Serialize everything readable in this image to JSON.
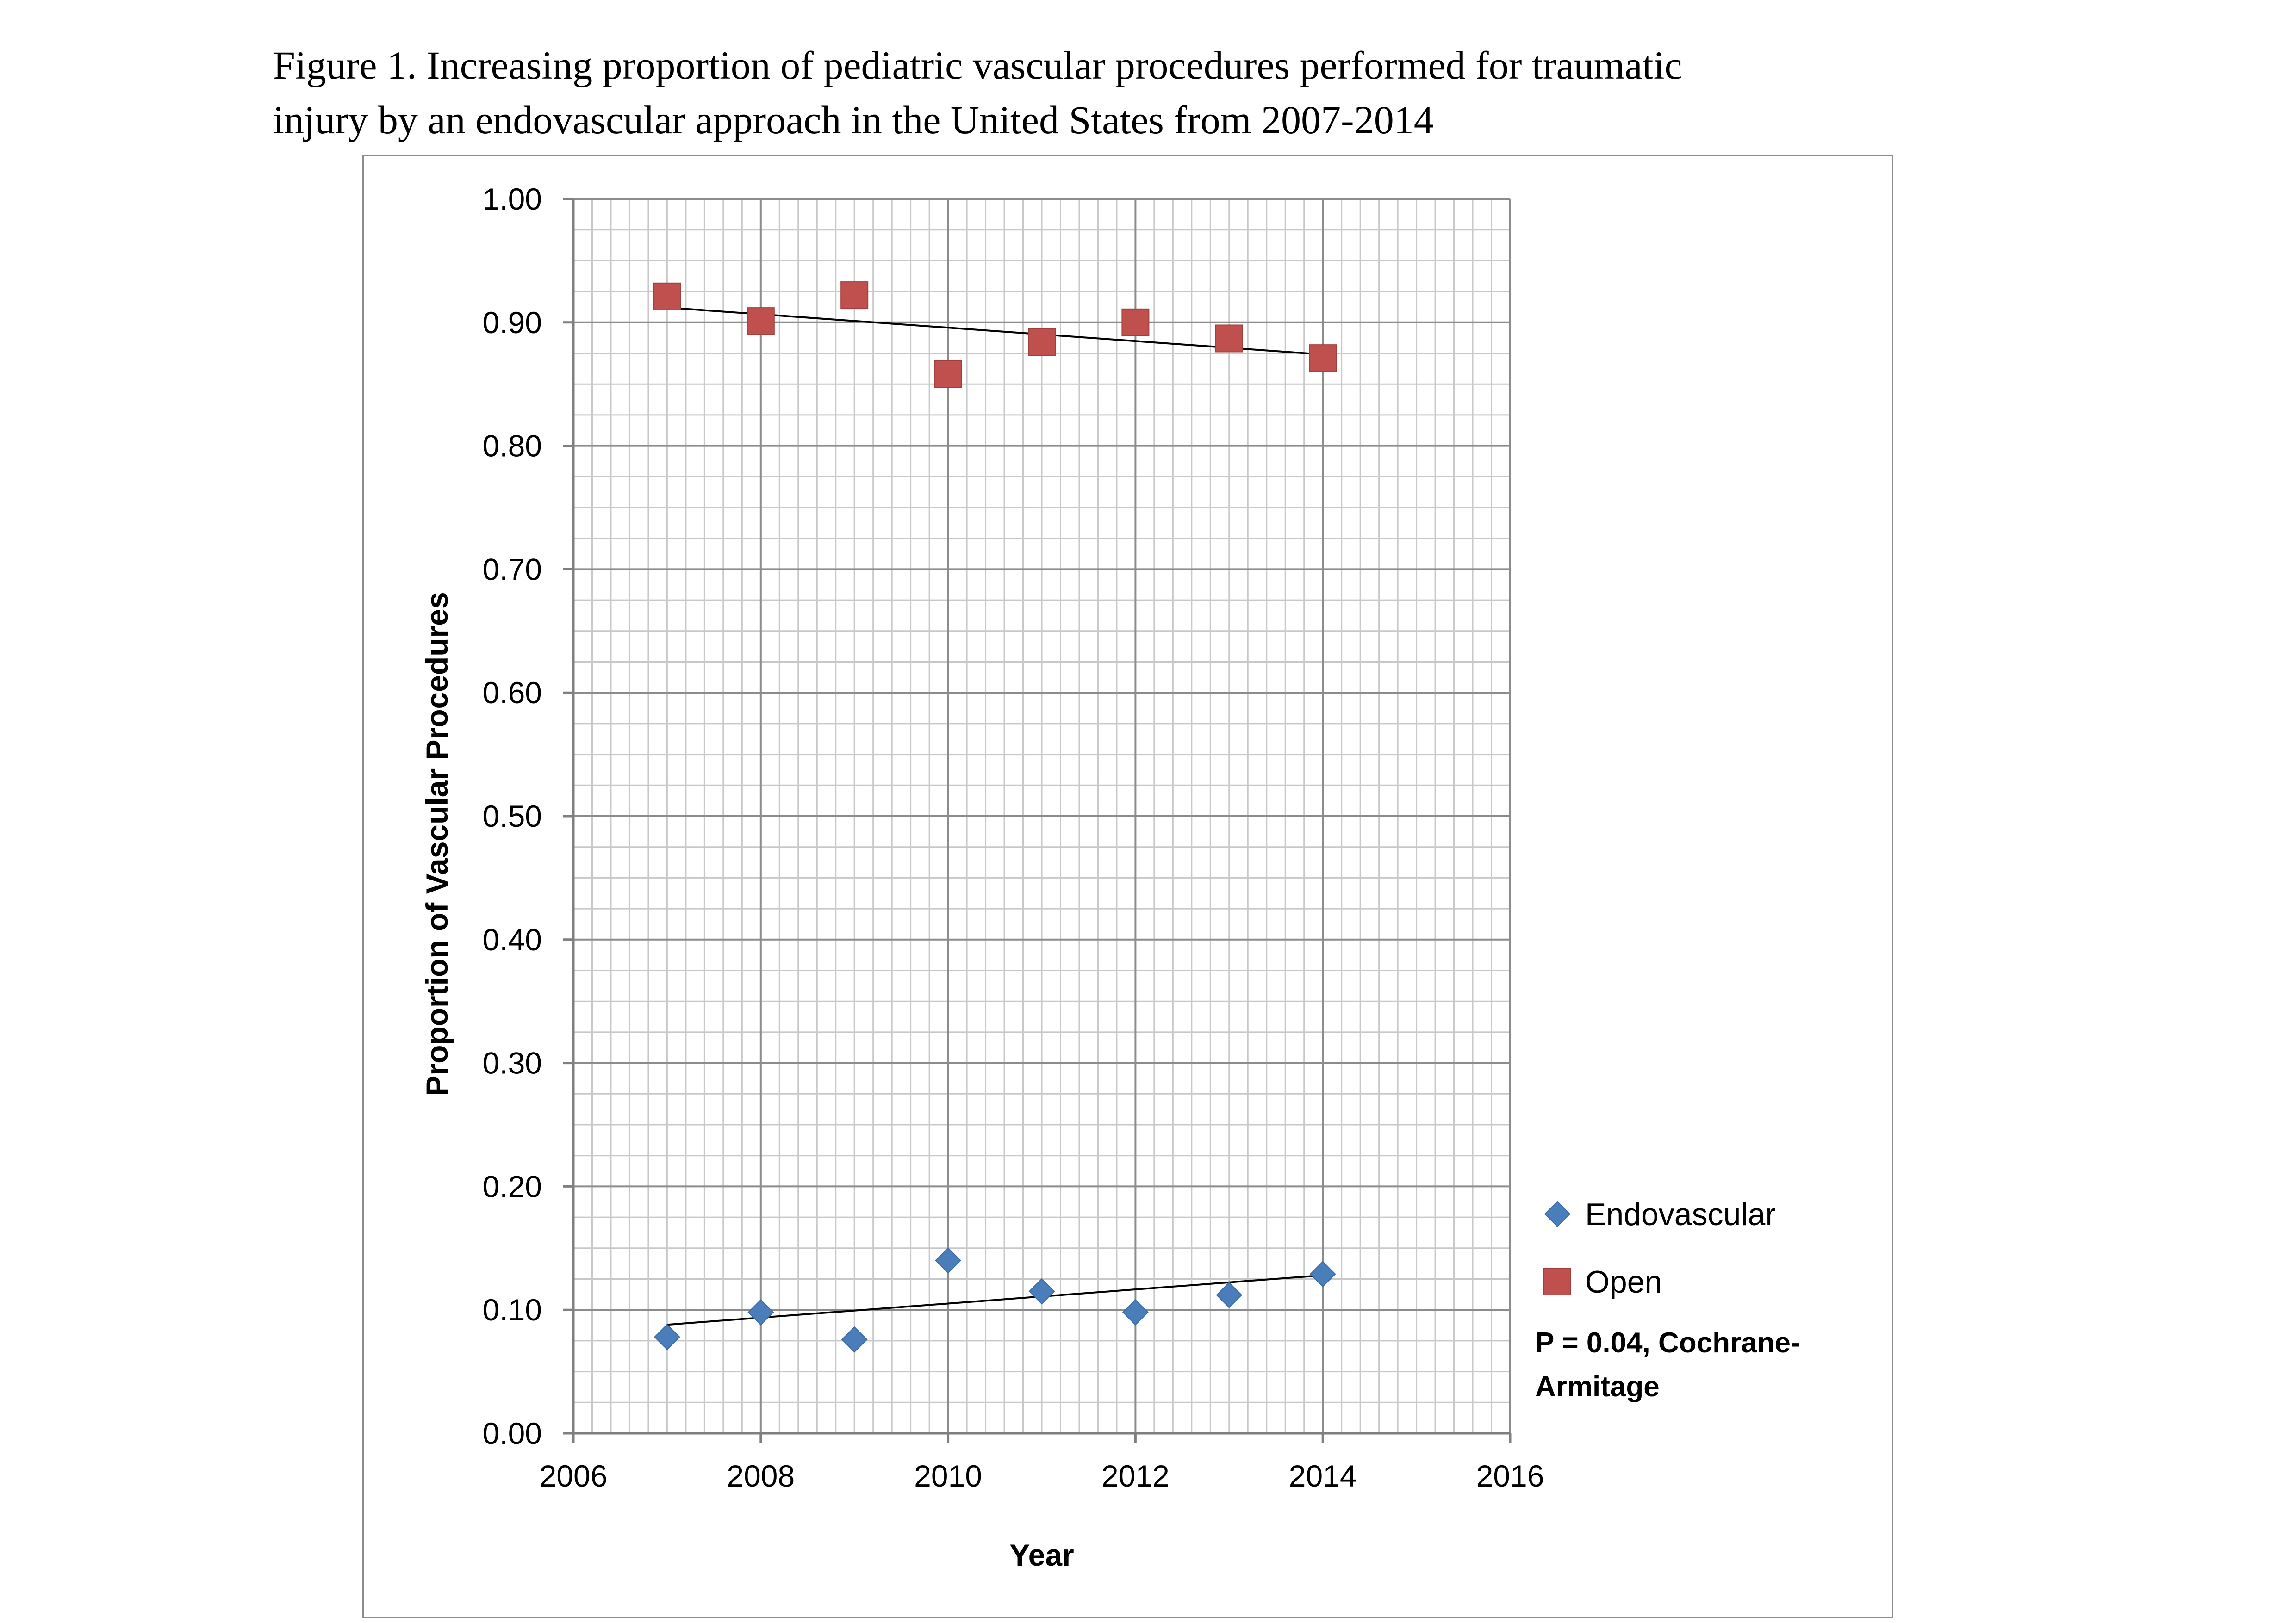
{
  "caption": {
    "line1": "Figure 1.  Increasing proportion of pediatric vascular procedures performed for traumatic",
    "line2": "injury by an endovascular approach in the United States from 2007-2014"
  },
  "chart_data": {
    "type": "scatter",
    "title": "",
    "xlabel": "Year",
    "ylabel": "Proportion of Vascular  Procedures",
    "xlim": [
      2006,
      2016
    ],
    "ylim": [
      0.0,
      1.0
    ],
    "x_ticks": [
      "2006",
      "2008",
      "2010",
      "2012",
      "2014",
      "2016"
    ],
    "y_ticks": [
      "0.00",
      "0.10",
      "0.20",
      "0.30",
      "0.40",
      "0.50",
      "0.60",
      "0.70",
      "0.80",
      "0.90",
      "1.00"
    ],
    "grid": true,
    "legend_position": "right",
    "series": [
      {
        "name": "Endovascular",
        "marker": "diamond",
        "color": "#4a7ebb",
        "x": [
          2007,
          2008,
          2009,
          2010,
          2011,
          2012,
          2013,
          2014
        ],
        "y": [
          0.078,
          0.098,
          0.076,
          0.14,
          0.115,
          0.098,
          0.112,
          0.129
        ],
        "trendline": {
          "x": [
            2007,
            2014
          ],
          "y": [
            0.088,
            0.128
          ]
        }
      },
      {
        "name": "Open",
        "marker": "square",
        "color": "#c0504d",
        "x": [
          2007,
          2008,
          2009,
          2010,
          2011,
          2012,
          2013,
          2014
        ],
        "y": [
          0.921,
          0.901,
          0.922,
          0.858,
          0.884,
          0.9,
          0.887,
          0.871
        ],
        "trendline": {
          "x": [
            2007,
            2014
          ],
          "y": [
            0.912,
            0.874
          ]
        }
      }
    ],
    "annotation": [
      "P = 0.04, Cochrane-",
      "Armitage"
    ]
  }
}
